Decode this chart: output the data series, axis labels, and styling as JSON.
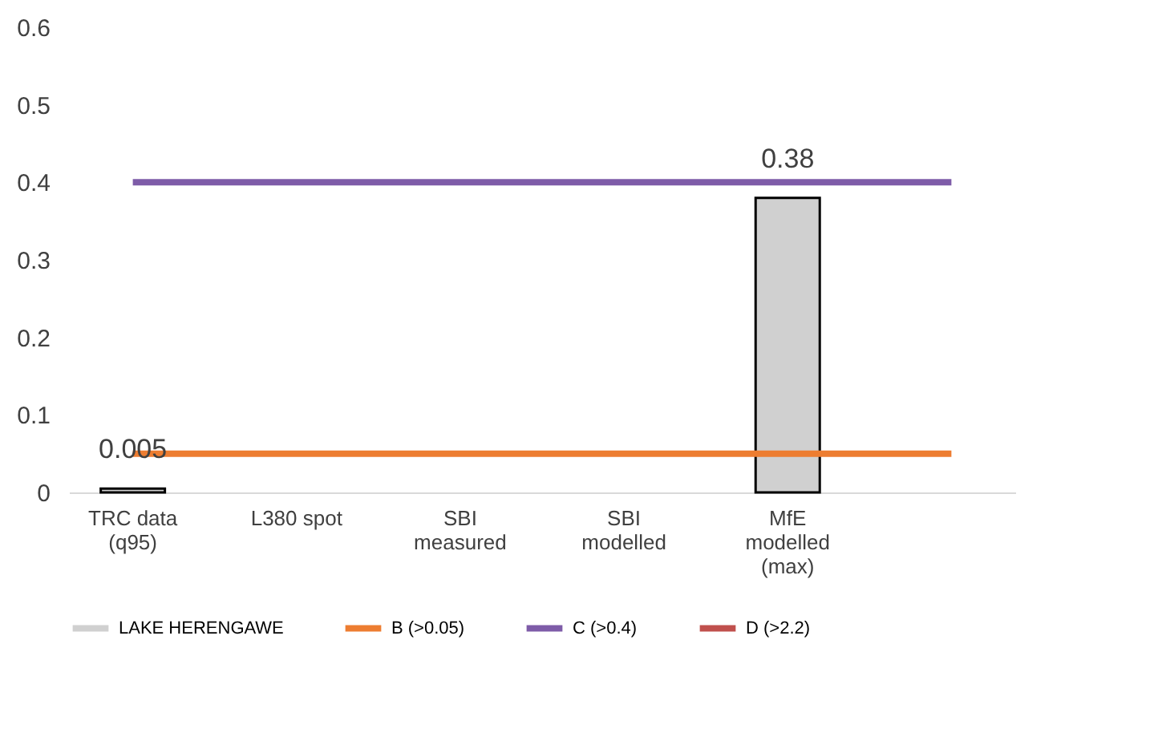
{
  "chart_data": {
    "type": "bar",
    "categories": [
      "TRC data (q95)",
      "L380 spot",
      "SBI measured",
      "SBI modelled",
      "MfE modelled (max)",
      null
    ],
    "series": [
      {
        "name": "LAKE HERENGAWE",
        "color": "#d0d0d0",
        "values": [
          0.005,
          null,
          null,
          null,
          0.38,
          null
        ],
        "value_labels": [
          "0.005",
          null,
          null,
          null,
          "0.38",
          null
        ]
      },
      {
        "name": "B (>0.05)",
        "type": "line",
        "color": "#ed7d31",
        "values": [
          0.05,
          0.05,
          0.05,
          0.05,
          0.05,
          0.05
        ]
      },
      {
        "name": "C (>0.4)",
        "type": "line",
        "color": "#7e5ca8",
        "values": [
          0.4,
          0.4,
          0.4,
          0.4,
          0.4,
          0.4
        ]
      },
      {
        "name": "D (>2.2)",
        "type": "line",
        "color": "#c0504d",
        "values": [
          null,
          null,
          null,
          null,
          null,
          null
        ]
      }
    ],
    "ylim": [
      0,
      0.6
    ],
    "yticks": [
      0,
      0.1,
      0.2,
      0.3,
      0.4,
      0.5,
      0.6
    ],
    "grid": false,
    "legend": "bottom",
    "marker": "none"
  }
}
